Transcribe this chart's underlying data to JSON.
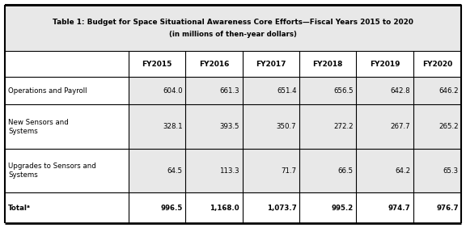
{
  "title_line1": "Table 1: Budget for Space Situational Awareness Core Efforts—Fiscal Years 2015 to 2020",
  "title_line2": "(in millions of then-year dollars)",
  "col_headers": [
    "",
    "FY2015",
    "FY2016",
    "FY2017",
    "FY2018",
    "FY2019",
    "FY2020"
  ],
  "rows": [
    {
      "label": "Operations and Payroll",
      "values": [
        "604.0",
        "661.3",
        "651.4",
        "656.5",
        "642.8",
        "646.2"
      ],
      "bold": false,
      "two_line": false
    },
    {
      "label": "New Sensors and\nSystems",
      "values": [
        "328.1",
        "393.5",
        "350.7",
        "272.2",
        "267.7",
        "265.2"
      ],
      "bold": false,
      "two_line": true
    },
    {
      "label": "Upgrades to Sensors and\nSystems",
      "values": [
        "64.5",
        "113.3",
        "71.7",
        "66.5",
        "64.2",
        "65.3"
      ],
      "bold": false,
      "two_line": true
    },
    {
      "label": "Totalᵃ",
      "values": [
        "996.5",
        "1,168.0",
        "1,073.7",
        "995.2",
        "974.7",
        "976.7"
      ],
      "bold": true,
      "two_line": false
    }
  ],
  "title_bg": "#e8e8e8",
  "header_bg": "#ffffff",
  "label_bg": "#ffffff",
  "value_bg": "#e8e8e8",
  "total_bg": "#ffffff",
  "border_color": "#000000",
  "text_color": "#000000",
  "fig_bg": "#ffffff",
  "outer_lw": 1.5,
  "inner_lw": 0.8
}
